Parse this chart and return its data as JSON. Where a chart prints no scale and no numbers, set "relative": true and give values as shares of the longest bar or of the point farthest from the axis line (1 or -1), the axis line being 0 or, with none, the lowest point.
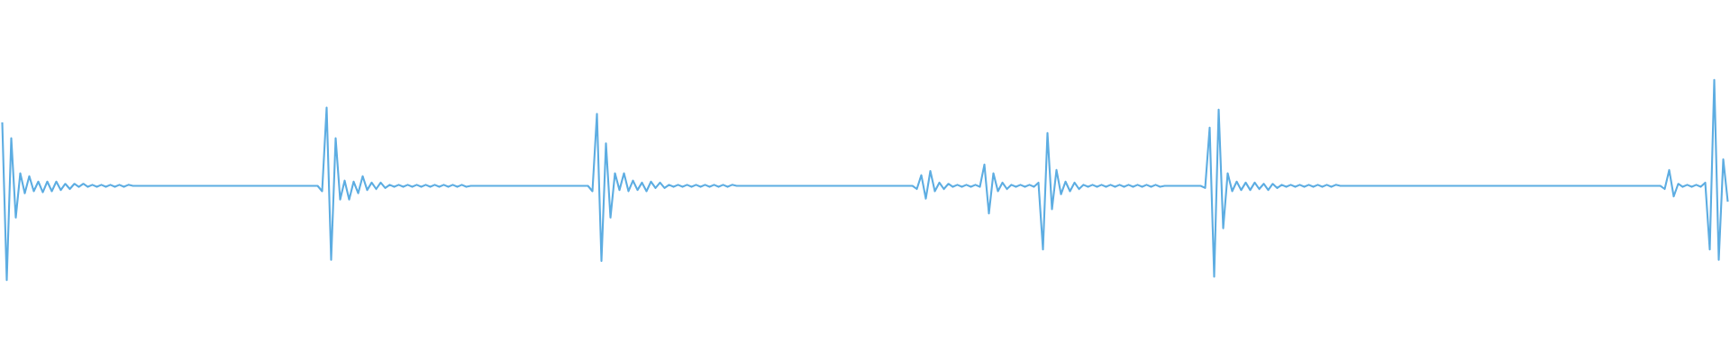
{
  "chart_data": {
    "type": "line",
    "relative": true,
    "color": "#5dade2",
    "marker": "none",
    "line_style": "solid",
    "categories": [
      null,
      null,
      null,
      null,
      null,
      null,
      null,
      null,
      null,
      null,
      null,
      null,
      null,
      null,
      null,
      null,
      null,
      null,
      null,
      null,
      null,
      null,
      null,
      null,
      null,
      null,
      null,
      null,
      null,
      null,
      null,
      null,
      null,
      null,
      null,
      null,
      null,
      null,
      null,
      null,
      null,
      null,
      null,
      null,
      null,
      null,
      null,
      null,
      null,
      null,
      null,
      null,
      null,
      null,
      null,
      null,
      null,
      null,
      null,
      null,
      null,
      null,
      null,
      null,
      null,
      null,
      null,
      null,
      null,
      null,
      null,
      null,
      null,
      null,
      null,
      null,
      null,
      null,
      null,
      null,
      null,
      null,
      null,
      null,
      null,
      null,
      null,
      null,
      null,
      null,
      null,
      null,
      null,
      null,
      null,
      null,
      null,
      null,
      null,
      null,
      null,
      null,
      null,
      null,
      null,
      null,
      null,
      null,
      null,
      null,
      null,
      null,
      null,
      null,
      null,
      null,
      null,
      null,
      null,
      null,
      null,
      null,
      null,
      null,
      null,
      null,
      null,
      null,
      null,
      null,
      null,
      null,
      null,
      null,
      null,
      null,
      null,
      null,
      null,
      null,
      null,
      null,
      null,
      null,
      null,
      null,
      null,
      null,
      null,
      null,
      null,
      null,
      null,
      null,
      null,
      null,
      null,
      null,
      null,
      null,
      null,
      null,
      null,
      null,
      null,
      null,
      null,
      null,
      null,
      null,
      null,
      null,
      null,
      null,
      null,
      null,
      null,
      null,
      null,
      null,
      null,
      null,
      null,
      null,
      null,
      null,
      null,
      null,
      null,
      null,
      null,
      null,
      null,
      null,
      null,
      null,
      null,
      null,
      null,
      null,
      null,
      null,
      null,
      null,
      null,
      null,
      null,
      null,
      null,
      null,
      null,
      null,
      null,
      null,
      null,
      null,
      null,
      null,
      null,
      null,
      null,
      null,
      null,
      null,
      null,
      null,
      null,
      null,
      null,
      null,
      null,
      null,
      null,
      null,
      null,
      null,
      null,
      null,
      null,
      null,
      null,
      null,
      null,
      null,
      null,
      null,
      null,
      null,
      null,
      null,
      null,
      null,
      null,
      null,
      null,
      null,
      null,
      null,
      null,
      null,
      null,
      null,
      null,
      null,
      null,
      null,
      null,
      null,
      null,
      null,
      null,
      null,
      null,
      null,
      null,
      null,
      null,
      null,
      null,
      null,
      null,
      null,
      null,
      null,
      null,
      null,
      null,
      null,
      null,
      null,
      null,
      null,
      null,
      null,
      null,
      null,
      null,
      null,
      null,
      null,
      null,
      null,
      null,
      null,
      null,
      null,
      null,
      null,
      null,
      null,
      null,
      null,
      null,
      null,
      null,
      null,
      null,
      null,
      null,
      null,
      null,
      null,
      null,
      null,
      null,
      null,
      null,
      null,
      null,
      null,
      null,
      null,
      null,
      null,
      null,
      null,
      null,
      null,
      null,
      null,
      null,
      null,
      null,
      null,
      null,
      null,
      null,
      null,
      null,
      null,
      null,
      null,
      null,
      null,
      null,
      null,
      null,
      null,
      null,
      null,
      null,
      null,
      null,
      null,
      null,
      null,
      null,
      null,
      null,
      null,
      null,
      null,
      null,
      null,
      null,
      null,
      null,
      null,
      null,
      null,
      null,
      null,
      null,
      null
    ],
    "values": [
      0.788,
      0,
      0.709,
      0.312,
      0.534,
      0.434,
      0.519,
      0.444,
      0.492,
      0.439,
      0.492,
      0.444,
      0.492,
      0.45,
      0.481,
      0.455,
      0.481,
      0.466,
      0.481,
      0.466,
      0.476,
      0.466,
      0.476,
      0.466,
      0.476,
      0.466,
      0.476,
      0.466,
      0.476,
      0.471,
      0.471,
      0.471,
      0.471,
      0.471,
      0.471,
      0.471,
      0.471,
      0.471,
      0.471,
      0.471,
      0.471,
      0.471,
      0.471,
      0.471,
      0.471,
      0.471,
      0.471,
      0.471,
      0.471,
      0.471,
      0.471,
      0.471,
      0.471,
      0.471,
      0.471,
      0.471,
      0.471,
      0.471,
      0.471,
      0.471,
      0.471,
      0.471,
      0.471,
      0.471,
      0.471,
      0.471,
      0.471,
      0.471,
      0.471,
      0.471,
      0.471,
      0.444,
      0.862,
      0.101,
      0.709,
      0.402,
      0.497,
      0.402,
      0.492,
      0.434,
      0.519,
      0.45,
      0.487,
      0.455,
      0.487,
      0.46,
      0.476,
      0.466,
      0.476,
      0.466,
      0.476,
      0.466,
      0.476,
      0.466,
      0.476,
      0.466,
      0.476,
      0.466,
      0.476,
      0.466,
      0.476,
      0.466,
      0.476,
      0.466,
      0.471,
      0.471,
      0.471,
      0.471,
      0.471,
      0.471,
      0.471,
      0.471,
      0.471,
      0.471,
      0.471,
      0.471,
      0.471,
      0.471,
      0.471,
      0.471,
      0.471,
      0.471,
      0.471,
      0.471,
      0.471,
      0.471,
      0.471,
      0.471,
      0.471,
      0.471,
      0.471,
      0.444,
      0.831,
      0.095,
      0.683,
      0.312,
      0.534,
      0.45,
      0.534,
      0.444,
      0.497,
      0.45,
      0.487,
      0.444,
      0.492,
      0.46,
      0.487,
      0.46,
      0.476,
      0.466,
      0.476,
      0.466,
      0.476,
      0.466,
      0.476,
      0.466,
      0.476,
      0.466,
      0.476,
      0.466,
      0.476,
      0.466,
      0.476,
      0.471,
      0.471,
      0.471,
      0.471,
      0.471,
      0.471,
      0.471,
      0.471,
      0.471,
      0.471,
      0.471,
      0.471,
      0.471,
      0.471,
      0.471,
      0.471,
      0.471,
      0.471,
      0.471,
      0.471,
      0.471,
      0.471,
      0.471,
      0.471,
      0.471,
      0.471,
      0.471,
      0.471,
      0.471,
      0.471,
      0.471,
      0.471,
      0.471,
      0.471,
      0.471,
      0.471,
      0.471,
      0.471,
      0.471,
      0.471,
      0.455,
      0.524,
      0.407,
      0.545,
      0.444,
      0.487,
      0.455,
      0.481,
      0.466,
      0.476,
      0.466,
      0.476,
      0.466,
      0.476,
      0.466,
      0.577,
      0.333,
      0.534,
      0.444,
      0.487,
      0.455,
      0.476,
      0.466,
      0.476,
      0.466,
      0.476,
      0.466,
      0.487,
      0.153,
      0.735,
      0.354,
      0.55,
      0.429,
      0.492,
      0.444,
      0.487,
      0.455,
      0.476,
      0.466,
      0.476,
      0.466,
      0.476,
      0.466,
      0.476,
      0.466,
      0.476,
      0.466,
      0.476,
      0.466,
      0.476,
      0.466,
      0.476,
      0.466,
      0.476,
      0.466,
      0.471,
      0.471,
      0.471,
      0.471,
      0.471,
      0.471,
      0.471,
      0.471,
      0.471,
      0.46,
      0.762,
      0.016,
      0.852,
      0.259,
      0.534,
      0.444,
      0.492,
      0.45,
      0.487,
      0.45,
      0.487,
      0.455,
      0.481,
      0.45,
      0.481,
      0.46,
      0.476,
      0.466,
      0.476,
      0.466,
      0.476,
      0.466,
      0.476,
      0.466,
      0.476,
      0.466,
      0.476,
      0.466,
      0.476,
      0.471,
      0.471,
      0.471,
      0.471,
      0.471,
      0.471,
      0.471,
      0.471,
      0.471,
      0.471,
      0.471,
      0.471,
      0.471,
      0.471,
      0.471,
      0.471,
      0.471,
      0.471,
      0.471,
      0.471,
      0.471,
      0.471,
      0.471,
      0.471,
      0.471,
      0.471,
      0.471,
      0.471,
      0.471,
      0.471,
      0.471,
      0.471,
      0.471,
      0.471,
      0.471,
      0.471,
      0.471,
      0.471,
      0.471,
      0.471,
      0.471,
      0.471,
      0.471,
      0.471,
      0.471,
      0.471,
      0.471,
      0.471,
      0.471,
      0.471,
      0.471,
      0.471,
      0.471,
      0.471,
      0.471,
      0.471,
      0.471,
      0.471,
      0.471,
      0.471,
      0.471,
      0.471,
      0.471,
      0.471,
      0.471,
      0.471,
      0.471,
      0.471,
      0.471,
      0.471,
      0.471,
      0.471,
      0.455,
      0.55,
      0.418,
      0.481,
      0.466,
      0.476,
      0.466,
      0.476,
      0.466,
      0.487,
      0.153,
      1,
      0.101,
      0.603,
      0.392
    ]
  }
}
